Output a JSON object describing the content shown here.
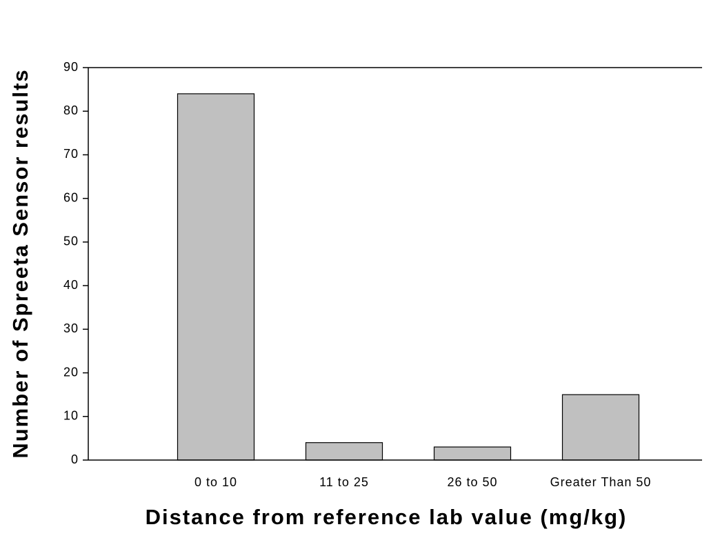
{
  "chart_data": {
    "type": "bar",
    "x_label": "Distance from reference lab value (mg/kg)",
    "y_label": "Number of Spreeta Sensor results",
    "categories": [
      "0 to 10",
      "11 to 25",
      "26 to 50",
      "Greater Than 50"
    ],
    "values": [
      84,
      4,
      3,
      15
    ],
    "color": "#c0c0c0",
    "ylim": [
      0,
      90
    ],
    "yticks": [
      0,
      10,
      20,
      30,
      40,
      50,
      60,
      70,
      80,
      90
    ],
    "grid": false
  }
}
